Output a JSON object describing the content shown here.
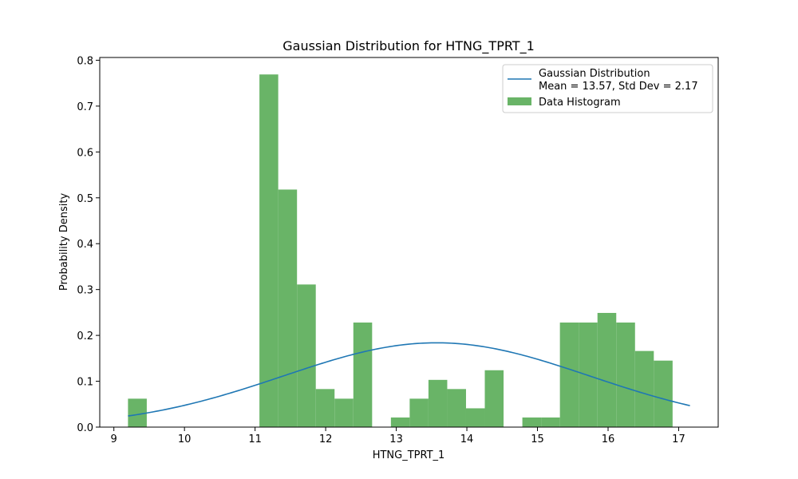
{
  "chart_data": {
    "type": "bar",
    "title": "Gaussian Distribution for HTNG_TPRT_1",
    "xlabel": "HTNG_TPRT_1",
    "ylabel": "Probability Density",
    "xlim": [
      8.8,
      17.56
    ],
    "ylim": [
      0,
      0.806
    ],
    "xticks": [
      9,
      10,
      11,
      12,
      13,
      14,
      15,
      16,
      17
    ],
    "yticks": [
      0.0,
      0.1,
      0.2,
      0.3,
      0.4,
      0.5,
      0.6,
      0.7,
      0.8
    ],
    "xtick_labels": [
      "9",
      "10",
      "11",
      "12",
      "13",
      "14",
      "15",
      "16",
      "17"
    ],
    "ytick_labels": [
      "0.0",
      "0.1",
      "0.2",
      "0.3",
      "0.4",
      "0.5",
      "0.6",
      "0.7",
      "0.8"
    ],
    "grid": false,
    "legend_placement": "top-right",
    "histogram": {
      "name": "Data Histogram",
      "color": "#69b467",
      "bin_start": 9.2,
      "bin_width": 0.266,
      "values": [
        0.062,
        0,
        0,
        0,
        0,
        0,
        0,
        0.769,
        0.518,
        0.311,
        0.083,
        0.062,
        0.228,
        0,
        0.021,
        0.062,
        0.103,
        0.083,
        0.041,
        0.124,
        0,
        0.021,
        0.021,
        0.228,
        0.228,
        0.249,
        0.228,
        0.166,
        0.145,
        0,
        0
      ]
    },
    "gaussian": {
      "name_line1": "Gaussian Distribution",
      "name_line2": "Mean = 13.57, Std Dev = 2.17",
      "color": "#1f77b4",
      "mean": 13.57,
      "std": 2.17,
      "x_range": [
        9.2,
        17.16
      ]
    }
  }
}
